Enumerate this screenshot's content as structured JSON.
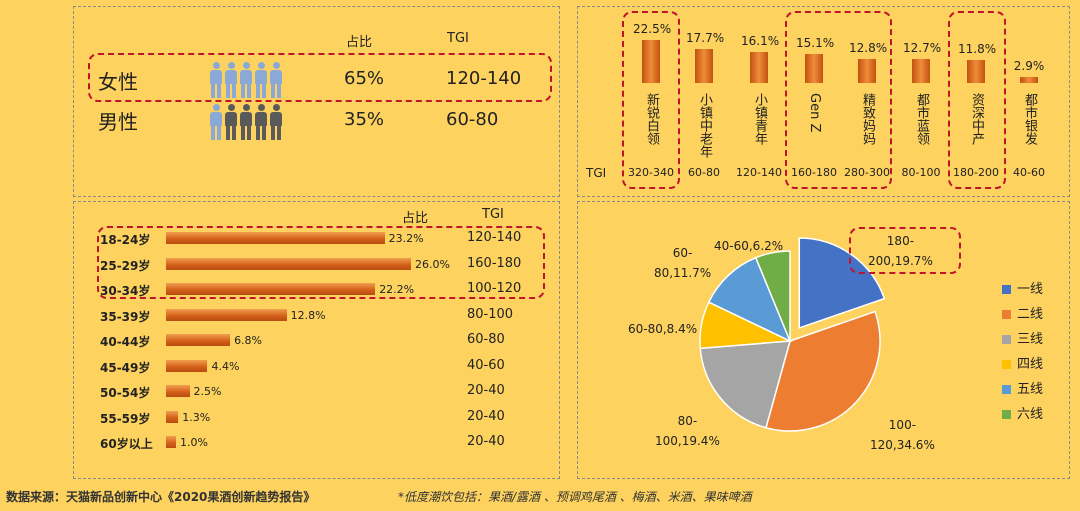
{
  "gender": {
    "header": {
      "share": "占比",
      "tgi": "TGI"
    },
    "rows": [
      {
        "label": "女性",
        "share": "65%",
        "tgi": "120-140"
      },
      {
        "label": "男性",
        "share": "35%",
        "tgi": "60-80"
      }
    ]
  },
  "persona": {
    "tgi_label": "TGI",
    "items": [
      {
        "name": "新锐白领",
        "pct": "22.5%",
        "value": 22.5,
        "tgi": "320-340"
      },
      {
        "name": "小镇中老年",
        "pct": "17.7%",
        "value": 17.7,
        "tgi": "60-80"
      },
      {
        "name": "小镇青年",
        "pct": "16.1%",
        "value": 16.1,
        "tgi": "120-140"
      },
      {
        "name": "Gen Z",
        "pct": "15.1%",
        "value": 15.1,
        "tgi": "160-180"
      },
      {
        "name": "精致妈妈",
        "pct": "12.8%",
        "value": 12.8,
        "tgi": "280-300"
      },
      {
        "name": "都市蓝领",
        "pct": "12.7%",
        "value": 12.7,
        "tgi": "80-100"
      },
      {
        "name": "资深中产",
        "pct": "11.8%",
        "value": 11.8,
        "tgi": "180-200"
      },
      {
        "name": "都市银发",
        "pct": "2.9%",
        "value": 2.9,
        "tgi": "40-60"
      }
    ]
  },
  "age": {
    "header": {
      "share": "占比",
      "tgi": "TGI"
    },
    "rows": [
      {
        "label": "18-24岁",
        "pct": "23.2%",
        "value": 23.2,
        "tgi": "120-140"
      },
      {
        "label": "25-29岁",
        "pct": "26.0%",
        "value": 26.0,
        "tgi": "160-180"
      },
      {
        "label": "30-34岁",
        "pct": "22.2%",
        "value": 22.2,
        "tgi": "100-120"
      },
      {
        "label": "35-39岁",
        "pct": "12.8%",
        "value": 12.8,
        "tgi": "80-100"
      },
      {
        "label": "40-44岁",
        "pct": "6.8%",
        "value": 6.8,
        "tgi": "60-80"
      },
      {
        "label": "45-49岁",
        "pct": "4.4%",
        "value": 4.4,
        "tgi": "40-60"
      },
      {
        "label": "50-54岁",
        "pct": "2.5%",
        "value": 2.5,
        "tgi": "20-40"
      },
      {
        "label": "55-59岁",
        "pct": "1.3%",
        "value": 1.3,
        "tgi": "20-40"
      },
      {
        "label": "60岁以上",
        "pct": "1.0%",
        "value": 1.0,
        "tgi": "20-40"
      }
    ]
  },
  "city": {
    "slices": [
      {
        "name": "一线",
        "value": 19.7,
        "label_top": "180-",
        "label_bottom": "200,19.7%",
        "color": "#4472c4"
      },
      {
        "name": "二线",
        "value": 34.6,
        "label_top": "100-",
        "label_bottom": "120,34.6%",
        "color": "#ed7d31"
      },
      {
        "name": "三线",
        "value": 19.4,
        "label_top": "80-",
        "label_bottom": "100,19.4%",
        "color": "#a5a5a5"
      },
      {
        "name": "四线",
        "value": 8.4,
        "label_top": "60-80,8.4%",
        "label_bottom": "",
        "color": "#ffc000"
      },
      {
        "name": "五线",
        "value": 11.7,
        "label_top": "60-",
        "label_bottom": "80,11.7%",
        "color": "#5b9bd5"
      },
      {
        "name": "六线",
        "value": 6.2,
        "label_top": "40-60,6.2%",
        "label_bottom": "",
        "color": "#70ad47"
      }
    ]
  },
  "footer": {
    "source": "数据来源：天猫新品创新中心《2020果酒创新趋势报告》",
    "note": "*低度潮饮包括：果酒/露酒 、预调鸡尾酒 、梅酒、米酒、果味啤酒"
  },
  "chart_data": [
    {
      "type": "table",
      "columns": [
        "",
        "占比",
        "TGI"
      ],
      "rows": [
        [
          "女性",
          "65%",
          "120-140"
        ],
        [
          "男性",
          "35%",
          "60-80"
        ]
      ]
    },
    {
      "type": "bar",
      "categories": [
        "新锐白领",
        "小镇中老年",
        "小镇青年",
        "Gen Z",
        "精致妈妈",
        "都市蓝领",
        "资深中产",
        "都市银发"
      ],
      "values": [
        22.5,
        17.7,
        16.1,
        15.1,
        12.8,
        12.7,
        11.8,
        2.9
      ],
      "tgi": [
        "320-340",
        "60-80",
        "120-140",
        "160-180",
        "280-300",
        "80-100",
        "180-200",
        "40-60"
      ],
      "unit": "%"
    },
    {
      "type": "bar",
      "orientation": "horizontal",
      "categories": [
        "18-24岁",
        "25-29岁",
        "30-34岁",
        "35-39岁",
        "40-44岁",
        "45-49岁",
        "50-54岁",
        "55-59岁",
        "60岁以上"
      ],
      "values": [
        23.2,
        26.0,
        22.2,
        12.8,
        6.8,
        4.4,
        2.5,
        1.3,
        1.0
      ],
      "tgi": [
        "120-140",
        "160-180",
        "100-120",
        "80-100",
        "60-80",
        "40-60",
        "20-40",
        "20-40",
        "20-40"
      ],
      "unit": "%"
    },
    {
      "type": "pie",
      "categories": [
        "一线",
        "二线",
        "三线",
        "四线",
        "五线",
        "六线"
      ],
      "values": [
        19.7,
        34.6,
        19.4,
        8.4,
        11.7,
        6.2
      ],
      "tgi": [
        "180-200",
        "100-120",
        "80-100",
        "60-80",
        "60-80",
        "40-60"
      ],
      "legend": "right"
    }
  ]
}
